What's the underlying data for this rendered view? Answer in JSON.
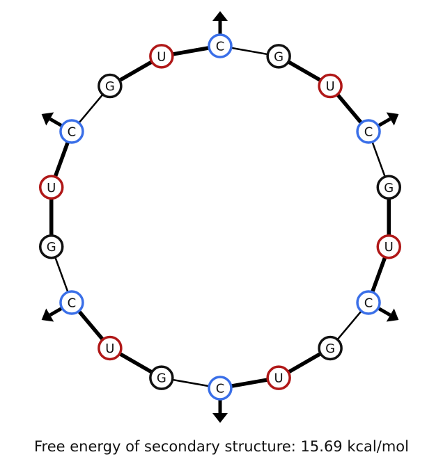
{
  "molecule": {
    "sequence": [
      "C",
      "G",
      "U",
      "C",
      "G",
      "U",
      "C",
      "G",
      "U",
      "C",
      "G",
      "U",
      "C",
      "G",
      "U",
      "C",
      "G",
      "U"
    ],
    "arrows_on": [
      "C"
    ],
    "backbone_pattern": [
      "thin",
      "thick",
      "thick"
    ]
  },
  "colors": {
    "C": "#3a6fe8",
    "G": "#111111",
    "U": "#b01818",
    "backbone": "#000000",
    "fill": "#ffffff"
  },
  "caption": "Free energy of secondary structure: 15.69 kcal/mol"
}
